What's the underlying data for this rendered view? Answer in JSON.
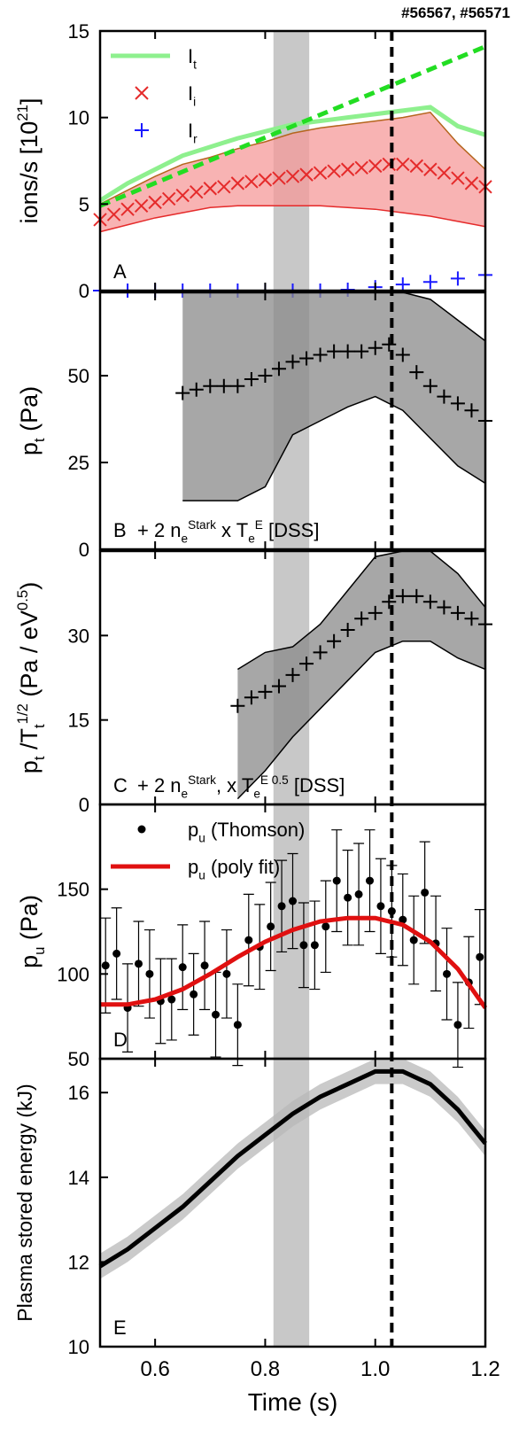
{
  "shot": "#56567, #56571",
  "highlight_band": [
    0.815,
    0.88
  ],
  "dashed_time": 1.03,
  "chart_data": [
    {
      "type": "line",
      "panel_label": "A",
      "ylabel": [
        {
          "text": "ions/s [10"
        },
        {
          "text": "21",
          "shift": "super"
        },
        {
          "text": "]"
        }
      ],
      "xlim": [
        0.5,
        1.2
      ],
      "ylim": [
        0,
        15
      ],
      "yticks": [
        0,
        5,
        10,
        15
      ],
      "legend": "upper left",
      "bands": [
        {
          "color": "#f59a9a",
          "edge_color": "#b5651d",
          "x": [
            0.5,
            0.55,
            0.6,
            0.65,
            0.7,
            0.75,
            0.8,
            0.85,
            0.9,
            0.95,
            1.0,
            1.05,
            1.1,
            1.15,
            1.2
          ],
          "lower": [
            3.4,
            3.8,
            4.2,
            4.5,
            4.8,
            4.9,
            4.9,
            4.9,
            4.9,
            4.8,
            4.7,
            4.5,
            4.3,
            4.0,
            3.7
          ],
          "upper": [
            5.0,
            5.8,
            6.6,
            7.3,
            7.7,
            8.2,
            8.6,
            9.1,
            9.4,
            9.6,
            9.8,
            10.0,
            10.3,
            8.5,
            7.0
          ]
        }
      ],
      "series": [
        {
          "label": [
            {
              "text": "I"
            },
            {
              "text": "t",
              "shift": "sub"
            }
          ],
          "color": "#8ef08e",
          "marker": "line",
          "width": 5,
          "x": [
            0.5,
            0.55,
            0.6,
            0.65,
            0.7,
            0.75,
            0.8,
            0.85,
            0.9,
            0.95,
            1.0,
            1.05,
            1.1,
            1.15,
            1.2
          ],
          "values": [
            5.2,
            6.2,
            7.0,
            7.8,
            8.3,
            8.8,
            9.2,
            9.6,
            9.8,
            10.0,
            10.2,
            10.4,
            10.6,
            9.5,
            9.0
          ]
        },
        {
          "color": "#22dd22",
          "marker": "line",
          "width": 5,
          "dashed": true,
          "x": [
            0.5,
            1.2
          ],
          "values": [
            4.9,
            14.1
          ]
        },
        {
          "label": [
            {
              "text": "I"
            },
            {
              "text": "i",
              "shift": "sub"
            }
          ],
          "color": "#e52b2b",
          "marker": "x",
          "x": [
            0.5,
            0.525,
            0.55,
            0.575,
            0.6,
            0.625,
            0.65,
            0.675,
            0.7,
            0.725,
            0.75,
            0.775,
            0.8,
            0.825,
            0.85,
            0.875,
            0.9,
            0.925,
            0.95,
            0.975,
            1.0,
            1.025,
            1.05,
            1.075,
            1.1,
            1.125,
            1.15,
            1.175,
            1.2
          ],
          "values": [
            4.1,
            4.4,
            4.7,
            4.9,
            5.1,
            5.3,
            5.5,
            5.7,
            5.9,
            6.0,
            6.2,
            6.3,
            6.4,
            6.5,
            6.6,
            6.7,
            6.8,
            6.9,
            7.0,
            7.1,
            7.2,
            7.3,
            7.3,
            7.2,
            7.0,
            6.8,
            6.5,
            6.2,
            6.0
          ]
        },
        {
          "label": [
            {
              "text": "I"
            },
            {
              "text": "r",
              "shift": "sub"
            }
          ],
          "color": "#1a1aff",
          "marker": "+",
          "x": [
            0.5,
            0.55,
            0.6,
            0.65,
            0.7,
            0.75,
            0.8,
            0.85,
            0.9,
            0.95,
            1.0,
            1.05,
            1.1,
            1.15,
            1.2
          ],
          "values": [
            0,
            0,
            0,
            0,
            0,
            0,
            0,
            0,
            0,
            0.05,
            0.2,
            0.35,
            0.5,
            0.7,
            0.9
          ]
        }
      ]
    },
    {
      "type": "line",
      "panel_label": "B",
      "ylabel": [
        {
          "text": "p"
        },
        {
          "text": "t",
          "shift": "sub"
        },
        {
          "text": " (Pa)"
        }
      ],
      "annotation": [
        {
          "text": "+ 2 n"
        },
        {
          "text": "e",
          "shift": "sub"
        },
        {
          "text": "Stark",
          "shift": "super"
        },
        {
          "text": " x T"
        },
        {
          "text": "e",
          "shift": "sub"
        },
        {
          "text": "E",
          "shift": "super"
        },
        {
          "text": " [DSS]"
        }
      ],
      "xlim": [
        0.5,
        1.2
      ],
      "ylim": [
        0,
        74
      ],
      "yticks": [
        0,
        25,
        50
      ],
      "bands": [
        {
          "color": "#8a8a8a",
          "edge_color": "#000000",
          "x": [
            0.65,
            0.7,
            0.75,
            0.8,
            0.85,
            0.9,
            0.95,
            1.0,
            1.05,
            1.1,
            1.15,
            1.2
          ],
          "lower": [
            14,
            14,
            14,
            18,
            33,
            37,
            41,
            44,
            40,
            32,
            24,
            19
          ],
          "upper": [
            74,
            74,
            74,
            74,
            74,
            74,
            74,
            74,
            74,
            72,
            66,
            60
          ]
        }
      ],
      "series": [
        {
          "color": "#000000",
          "marker": "+",
          "x": [
            0.65,
            0.675,
            0.7,
            0.725,
            0.75,
            0.775,
            0.8,
            0.825,
            0.85,
            0.875,
            0.9,
            0.925,
            0.95,
            0.975,
            1.0,
            1.025,
            1.05,
            1.075,
            1.1,
            1.125,
            1.15,
            1.175,
            1.2
          ],
          "values": [
            45,
            46,
            47,
            47,
            47,
            49,
            50,
            52,
            54,
            55,
            56,
            57,
            57,
            57,
            58,
            59,
            56,
            51,
            47,
            44,
            42,
            40,
            37
          ]
        }
      ]
    },
    {
      "type": "line",
      "panel_label": "C",
      "ylabel": [
        {
          "text": "p"
        },
        {
          "text": "t",
          "shift": "sub"
        },
        {
          "text": " /T"
        },
        {
          "text": "t",
          "shift": "sub"
        },
        {
          "text": "1/2",
          "shift": "super"
        },
        {
          "text": " (Pa / eV"
        },
        {
          "text": "0.5",
          "shift": "super"
        },
        {
          "text": ")"
        }
      ],
      "annotation": [
        {
          "text": "+ 2 n"
        },
        {
          "text": "e",
          "shift": "sub"
        },
        {
          "text": "Stark",
          "shift": "super"
        },
        {
          "text": ", x T"
        },
        {
          "text": "e",
          "shift": "sub"
        },
        {
          "text": "E 0.5",
          "shift": "super"
        },
        {
          "text": " [DSS]"
        }
      ],
      "xlim": [
        0.5,
        1.2
      ],
      "ylim": [
        0,
        45
      ],
      "yticks": [
        0,
        15,
        30
      ],
      "bands": [
        {
          "color": "#8a8a8a",
          "edge_color": "#000000",
          "x": [
            0.75,
            0.8,
            0.85,
            0.9,
            0.95,
            1.0,
            1.05,
            1.1,
            1.15,
            1.2
          ],
          "lower": [
            1,
            6,
            12,
            17,
            22,
            27,
            29,
            29,
            26,
            24
          ],
          "upper": [
            24,
            27,
            28,
            32,
            38,
            44,
            45,
            45,
            41,
            35
          ]
        }
      ],
      "series": [
        {
          "color": "#000000",
          "marker": "+",
          "x": [
            0.75,
            0.775,
            0.8,
            0.825,
            0.85,
            0.875,
            0.9,
            0.925,
            0.95,
            0.975,
            1.0,
            1.025,
            1.05,
            1.075,
            1.1,
            1.125,
            1.15,
            1.175,
            1.2
          ],
          "values": [
            17.5,
            19,
            20,
            21,
            23,
            25,
            27,
            29,
            31,
            33,
            34,
            36,
            37,
            37,
            36,
            35,
            34,
            33,
            32
          ]
        }
      ]
    },
    {
      "type": "scatter",
      "panel_label": "D",
      "ylabel": [
        {
          "text": "p"
        },
        {
          "text": "u",
          "shift": "sub"
        },
        {
          "text": "  (Pa)"
        }
      ],
      "xlim": [
        0.5,
        1.2
      ],
      "ylim": [
        50,
        200
      ],
      "yticks": [
        50,
        100,
        150
      ],
      "legend": "upper left",
      "series": [
        {
          "label": [
            {
              "text": "p"
            },
            {
              "text": "u",
              "shift": "sub"
            },
            {
              "text": " (Thomson)"
            }
          ],
          "color": "#000000",
          "marker": "dot",
          "x": [
            0.51,
            0.53,
            0.55,
            0.57,
            0.59,
            0.61,
            0.63,
            0.65,
            0.67,
            0.69,
            0.71,
            0.73,
            0.75,
            0.77,
            0.79,
            0.81,
            0.83,
            0.85,
            0.87,
            0.89,
            0.91,
            0.93,
            0.95,
            0.97,
            0.99,
            1.01,
            1.03,
            1.05,
            1.07,
            1.09,
            1.11,
            1.13,
            1.15,
            1.17,
            1.19
          ],
          "values": [
            105,
            112,
            80,
            106,
            100,
            84,
            85,
            104,
            88,
            105,
            76,
            100,
            70,
            120,
            116,
            128,
            140,
            143,
            117,
            117,
            128,
            155,
            145,
            147,
            155,
            140,
            137,
            132,
            120,
            148,
            118,
            100,
            70,
            95,
            110
          ],
          "errors": [
            28,
            27,
            26,
            25,
            26,
            25,
            24,
            25,
            24,
            26,
            25,
            26,
            24,
            27,
            25,
            26,
            27,
            28,
            25,
            26,
            27,
            30,
            28,
            30,
            30,
            28,
            27,
            27,
            26,
            30,
            28,
            27,
            25,
            27,
            28
          ]
        },
        {
          "label": [
            {
              "text": "p"
            },
            {
              "text": "u",
              "shift": "sub"
            },
            {
              "text": " (poly fit)"
            }
          ],
          "color": "#e01010",
          "marker": "line",
          "width": 5,
          "x": [
            0.5,
            0.55,
            0.6,
            0.65,
            0.7,
            0.75,
            0.8,
            0.85,
            0.9,
            0.95,
            1.0,
            1.05,
            1.1,
            1.15,
            1.2
          ],
          "values": [
            82,
            82,
            85,
            91,
            100,
            110,
            119,
            126,
            131,
            133,
            133,
            129,
            119,
            103,
            80
          ]
        }
      ]
    },
    {
      "type": "line",
      "panel_label": "E",
      "ylabel": [
        {
          "text": "Plasma stored energy (kJ)"
        }
      ],
      "xlabel": "Time (s)",
      "xlim": [
        0.5,
        1.2
      ],
      "xticks": [
        0.6,
        0.8,
        {
          "value": 1,
          "label": "1.0"
        },
        1.2
      ],
      "ylim": [
        10,
        16.8
      ],
      "yticks": [
        10,
        12,
        14,
        16
      ],
      "bands": [
        {
          "color": "#b8b8b8",
          "x": [
            0.5,
            0.55,
            0.6,
            0.65,
            0.7,
            0.75,
            0.8,
            0.85,
            0.9,
            0.95,
            1.0,
            1.05,
            1.1,
            1.15,
            1.2
          ],
          "lower": [
            11.6,
            12.0,
            12.5,
            13.0,
            13.6,
            14.2,
            14.7,
            15.2,
            15.6,
            15.9,
            16.2,
            16.2,
            15.9,
            15.3,
            14.5
          ],
          "upper": [
            12.2,
            12.6,
            13.1,
            13.6,
            14.2,
            14.8,
            15.3,
            15.8,
            16.2,
            16.5,
            16.8,
            16.8,
            16.5,
            15.9,
            15.1
          ]
        }
      ],
      "series": [
        {
          "color": "#000000",
          "marker": "line",
          "width": 5,
          "x": [
            0.5,
            0.55,
            0.6,
            0.65,
            0.7,
            0.75,
            0.8,
            0.85,
            0.9,
            0.95,
            1.0,
            1.05,
            1.1,
            1.15,
            1.2
          ],
          "values": [
            11.9,
            12.3,
            12.8,
            13.3,
            13.9,
            14.5,
            15.0,
            15.5,
            15.9,
            16.2,
            16.5,
            16.5,
            16.2,
            15.6,
            14.8
          ]
        }
      ]
    }
  ]
}
